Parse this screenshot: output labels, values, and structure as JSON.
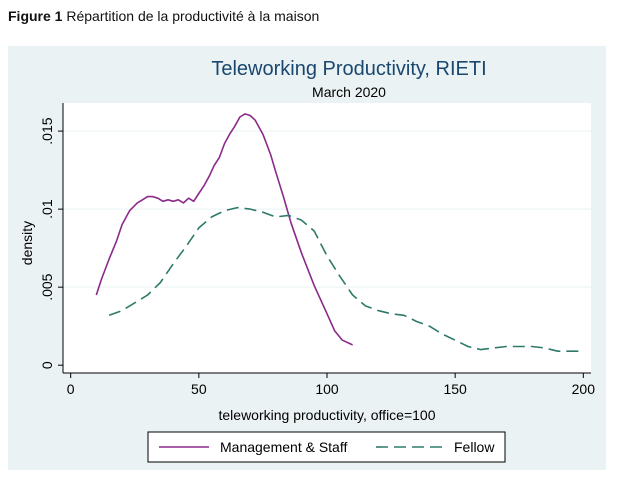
{
  "caption": {
    "number": "Figure 1",
    "text": "Répartition de la productivité à la maison"
  },
  "chart_data": {
    "type": "line",
    "title": "Teleworking Productivity, RIETI",
    "subtitle": "March 2020",
    "xlabel": "teleworking productivity, office=100",
    "ylabel": "density",
    "xlim": [
      -3,
      203
    ],
    "ylim": [
      -0.0005,
      0.0168
    ],
    "x_ticks": [
      0,
      50,
      100,
      150,
      200
    ],
    "x_tick_labels": [
      "0",
      "50",
      "100",
      "150",
      "200"
    ],
    "y_ticks": [
      0,
      0.005,
      0.01,
      0.015
    ],
    "y_tick_labels": [
      "0",
      ".005",
      ".01",
      ".015"
    ],
    "grid": true,
    "legend_position": "bottom",
    "colors": {
      "outer_background": "#eaf2f3",
      "plot_background": "#ffffff",
      "grid": "#eaf2f3",
      "title": "#1a476f",
      "management": "#8a2a8a",
      "fellow": "#2e7a6a"
    },
    "series": [
      {
        "name": "Management & Staff",
        "style": "solid",
        "x": [
          10,
          12,
          15,
          18,
          20,
          23,
          26,
          28,
          30,
          32,
          34,
          36,
          38,
          40,
          42,
          44,
          46,
          48,
          50,
          52,
          54,
          56,
          58,
          60,
          62,
          64,
          66,
          68,
          70,
          72,
          75,
          78,
          80,
          83,
          86,
          90,
          95,
          100,
          103,
          106,
          110
        ],
        "y": [
          0.0045,
          0.0055,
          0.0068,
          0.008,
          0.009,
          0.0099,
          0.0104,
          0.0106,
          0.0108,
          0.0108,
          0.0107,
          0.0105,
          0.0106,
          0.0105,
          0.0106,
          0.0104,
          0.0107,
          0.0105,
          0.011,
          0.0115,
          0.0121,
          0.0128,
          0.0133,
          0.0142,
          0.0148,
          0.0153,
          0.0159,
          0.0161,
          0.016,
          0.0157,
          0.0148,
          0.0135,
          0.0124,
          0.0108,
          0.0091,
          0.0072,
          0.0051,
          0.0033,
          0.0022,
          0.0016,
          0.0013
        ]
      },
      {
        "name": "Fellow",
        "style": "dashed",
        "x": [
          15,
          20,
          25,
          30,
          35,
          40,
          45,
          50,
          55,
          60,
          65,
          70,
          75,
          80,
          85,
          90,
          95,
          100,
          105,
          110,
          115,
          120,
          125,
          130,
          135,
          140,
          145,
          150,
          155,
          160,
          165,
          170,
          175,
          180,
          185,
          190,
          195,
          200
        ],
        "y": [
          0.0032,
          0.0035,
          0.004,
          0.0045,
          0.0053,
          0.0065,
          0.0076,
          0.0088,
          0.0095,
          0.0099,
          0.0101,
          0.01,
          0.0098,
          0.0095,
          0.0096,
          0.0093,
          0.0086,
          0.007,
          0.0057,
          0.0045,
          0.0038,
          0.0035,
          0.0033,
          0.0032,
          0.0028,
          0.0025,
          0.002,
          0.0016,
          0.0012,
          0.001,
          0.0011,
          0.0012,
          0.0012,
          0.0012,
          0.0011,
          0.0009,
          0.0009,
          0.0009
        ]
      }
    ]
  }
}
